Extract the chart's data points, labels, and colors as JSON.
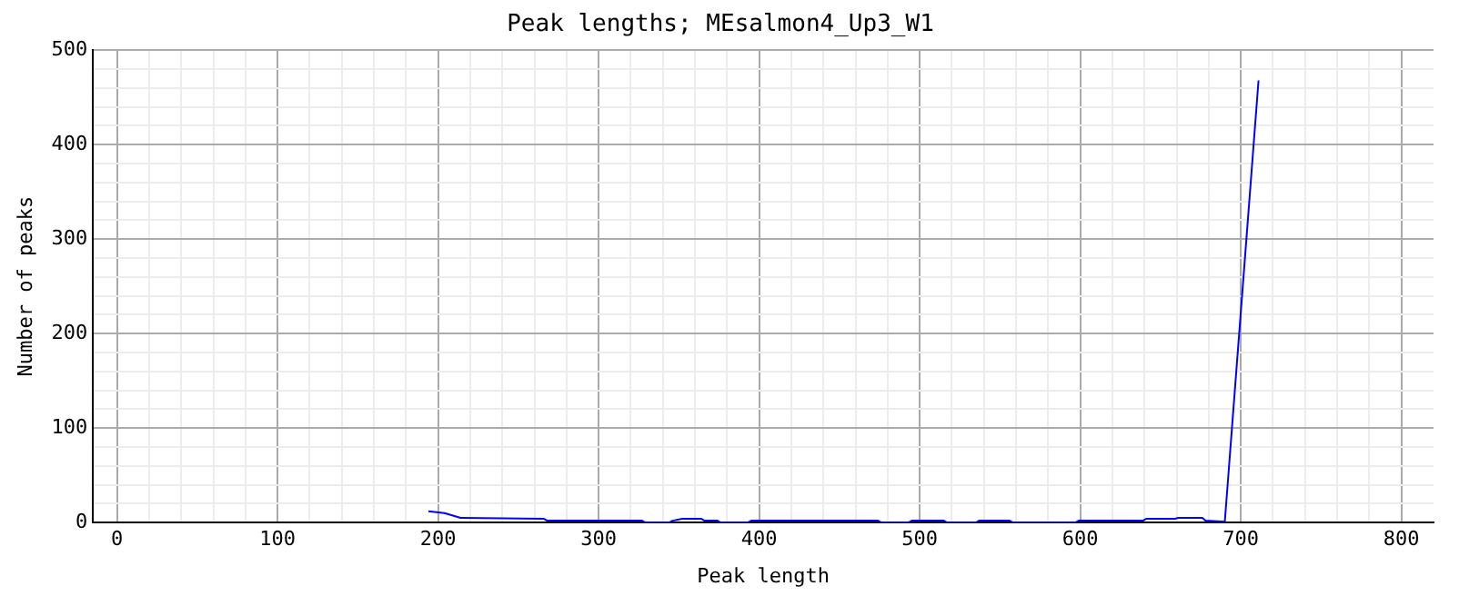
{
  "chart_data": {
    "type": "line",
    "title": "Peak lengths; MEsalmon4_Up3_W1",
    "xlabel": "Peak length",
    "ylabel": "Number of peaks",
    "x": [
      194,
      204,
      214,
      266,
      268,
      327,
      329,
      344,
      346,
      352,
      364,
      366,
      374,
      376,
      393,
      395,
      474,
      476,
      493,
      495,
      515,
      517,
      535,
      537,
      556,
      558,
      597,
      599,
      639,
      641,
      659,
      661,
      676,
      678,
      690,
      711
    ],
    "series": [
      {
        "color": "#0000ff",
        "values": [
          12,
          10,
          5,
          4,
          2,
          2,
          0,
          0,
          2,
          4,
          4,
          2,
          2,
          0,
          0,
          2,
          2,
          0,
          0,
          2,
          2,
          0,
          0,
          2,
          2,
          0,
          0,
          2,
          2,
          4,
          4,
          5,
          5,
          2,
          1,
          468
        ]
      }
    ],
    "xlim": [
      -15,
      820
    ],
    "xticks": [
      0,
      100,
      200,
      300,
      400,
      500,
      600,
      700,
      800
    ],
    "ylim": [
      0,
      500
    ],
    "yticks": [
      0,
      100,
      200,
      300,
      400,
      500
    ],
    "grid": true,
    "legend": false,
    "marker": "none"
  }
}
